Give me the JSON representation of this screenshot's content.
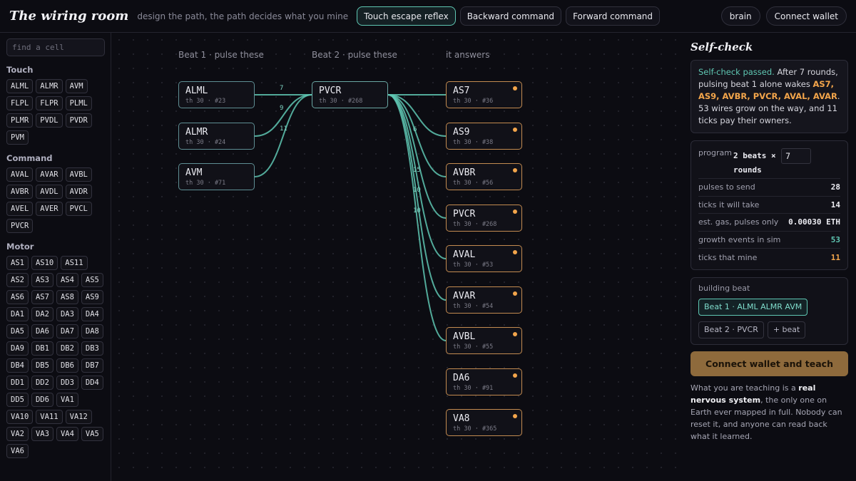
{
  "header": {
    "logo": "The wiring room",
    "tagline": "design the path, the path decides what you mine",
    "tabs": [
      "Touch escape reflex",
      "Backward command",
      "Forward command"
    ],
    "brain_button": "brain",
    "wallet_button": "Connect wallet"
  },
  "sidebar": {
    "search_placeholder": "find a cell",
    "groups": [
      {
        "title": "Touch",
        "cells": [
          "ALML",
          "ALMR",
          "AVM",
          "FLPL",
          "FLPR",
          "PLML",
          "PLMR",
          "PVDL",
          "PVDR",
          "PVM"
        ]
      },
      {
        "title": "Command",
        "cells": [
          "AVAL",
          "AVAR",
          "AVBL",
          "AVBR",
          "AVDL",
          "AVDR",
          "AVEL",
          "AVER",
          "PVCL",
          "PVCR"
        ]
      },
      {
        "title": "Motor",
        "cells": [
          "AS1",
          "AS10",
          "AS11",
          "AS2",
          "AS3",
          "AS4",
          "AS5",
          "AS6",
          "AS7",
          "AS8",
          "AS9",
          "DA1",
          "DA2",
          "DA3",
          "DA4",
          "DA5",
          "DA6",
          "DA7",
          "DA8",
          "DA9",
          "DB1",
          "DB2",
          "DB3",
          "DB4",
          "DB5",
          "DB6",
          "DB7",
          "DD1",
          "DD2",
          "DD3",
          "DD4",
          "DD5",
          "DD6",
          "VA1",
          "VA10",
          "VA11",
          "VA12",
          "VA2",
          "VA3",
          "VA4",
          "VA5",
          "VA6"
        ]
      }
    ]
  },
  "canvas": {
    "col1": "Beat 1 · pulse these",
    "col2": "Beat 2 · pulse these",
    "col3": "it answers",
    "inputs": [
      {
        "name": "ALML",
        "sub": "th 30 · #23"
      },
      {
        "name": "ALMR",
        "sub": "th 30 · #24"
      },
      {
        "name": "AVM",
        "sub": "th 30 · #71"
      }
    ],
    "middle": {
      "name": "PVCR",
      "sub": "th 30 · #268"
    },
    "outputs": [
      {
        "name": "AS7",
        "sub": "th 30 · #36"
      },
      {
        "name": "AS9",
        "sub": "th 30 · #38"
      },
      {
        "name": "AVBR",
        "sub": "th 30 · #56"
      },
      {
        "name": "PVCR",
        "sub": "th 30 · #268"
      },
      {
        "name": "AVAL",
        "sub": "th 30 · #53"
      },
      {
        "name": "AVAR",
        "sub": "th 30 · #54"
      },
      {
        "name": "AVBL",
        "sub": "th 30 · #55"
      },
      {
        "name": "DA6",
        "sub": "th 30 · #91"
      },
      {
        "name": "VA8",
        "sub": "th 30 · #365"
      }
    ],
    "wire_labels": [
      "7",
      "9",
      "11",
      "6",
      "15",
      "10",
      "10"
    ]
  },
  "panel": {
    "title": "Self-check",
    "check_pass": "Self-check passed.",
    "check_text1": " After 7 rounds, pulsing beat 1 alone wakes ",
    "check_cells": "AS7, AS9, AVBR, PVCR, AVAL, AVAR",
    "check_text2": ". 53 wires grow on the way, and 11 ticks pay their owners.",
    "program_label": "program",
    "program_value": "2 beats ×",
    "rounds_value": "7",
    "rounds_label": "rounds",
    "stats": [
      {
        "label": "pulses to send",
        "value": "28",
        "tone": ""
      },
      {
        "label": "ticks it will take",
        "value": "14",
        "tone": ""
      },
      {
        "label": "est. gas, pulses only",
        "value": "0.00030 ETH",
        "tone": ""
      },
      {
        "label": "growth events in sim",
        "value": "53",
        "tone": "teal"
      },
      {
        "label": "ticks that mine",
        "value": "11",
        "tone": "orange"
      }
    ],
    "building_label": "building beat",
    "beat1": "Beat 1 · ALML ALMR AVM",
    "beat2": "Beat 2 · PVCR",
    "add_beat": "+ beat",
    "cta": "Connect wallet and teach",
    "foot1": "What you are teaching is a ",
    "foot_bold": "real nervous system",
    "foot2": ", the only one on Earth ever mapped in full. Nobody can reset it, and anyone can read back what it learned."
  },
  "colors": {
    "teal": "#5fc7b3",
    "orange": "#f3a54b",
    "cta": "#8e6a3c"
  }
}
